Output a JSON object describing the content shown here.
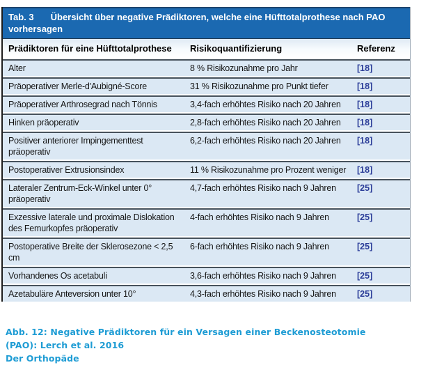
{
  "table": {
    "label": "Tab. 3",
    "title": "Übersicht über negative Prädiktoren, welche eine Hüfttotalprothese nach PAO vorhersagen",
    "columns": [
      {
        "label": "Prädiktoren für eine Hüfttotalprothese"
      },
      {
        "label": "Risikoquantifizierung"
      },
      {
        "label": "Referenz"
      }
    ],
    "rows": [
      {
        "predictor": "Alter",
        "risk": "8 % Risikozunahme pro Jahr",
        "reference": "[18]"
      },
      {
        "predictor": "Präoperativer Merle-d'Aubigné-Score",
        "risk": "31 % Risikozunahme pro Punkt tiefer",
        "reference": "[18]"
      },
      {
        "predictor": "Präoperativer Arthrosegrad nach Tönnis",
        "risk": "3,4-fach erhöhtes Risiko nach 20 Jahren",
        "reference": "[18]"
      },
      {
        "predictor": "Hinken präoperativ",
        "risk": "2,8-fach erhöhtes Risiko nach 20 Jahren",
        "reference": "[18]"
      },
      {
        "predictor": "Positiver anteriorer Impingementtest präoperativ",
        "risk": "6,2-fach erhöhtes Risiko nach 20 Jahren",
        "reference": "[18]"
      },
      {
        "predictor": "Postoperativer Extrusionsindex",
        "risk": "11 % Risikozunahme pro Prozent weniger",
        "reference": "[18]"
      },
      {
        "predictor": "Lateraler Zentrum-Eck-Winkel unter 0° präoperativ",
        "risk": "4,7-fach erhöhtes Risiko nach 9 Jahren",
        "reference": "[25]"
      },
      {
        "predictor": "Exzessive laterale und proximale Dislokation des Femurkopfes präoperativ",
        "risk": "4-fach erhöhtes Risiko nach 9 Jahren",
        "reference": "[25]"
      },
      {
        "predictor": "Postoperative Breite der Sklerosezone < 2,5 cm",
        "risk": "6-fach erhöhtes Risiko nach 9 Jahren",
        "reference": "[25]"
      },
      {
        "predictor": "Vorhandenes Os acetabuli",
        "risk": "3,6-fach erhöhtes Risiko nach 9 Jahren",
        "reference": "[25]"
      },
      {
        "predictor": "Azetabuläre Anteversion unter 10°",
        "risk": "4,3-fach erhöhtes Risiko nach 9 Jahren",
        "reference": "[25]"
      }
    ]
  },
  "caption": {
    "line1": "Abb. 12: Negative Prädiktoren für ein Versagen einer Beckenosteotomie (PAO): Lerch et al. 2016",
    "line2": "Der Orthopäde"
  },
  "colors": {
    "header_bar": "#1b69b1",
    "row_background": "#dbe8f4",
    "reference_link": "#2c3e99",
    "caption_text": "#1e9cd4",
    "separator_line": "#47525c"
  }
}
